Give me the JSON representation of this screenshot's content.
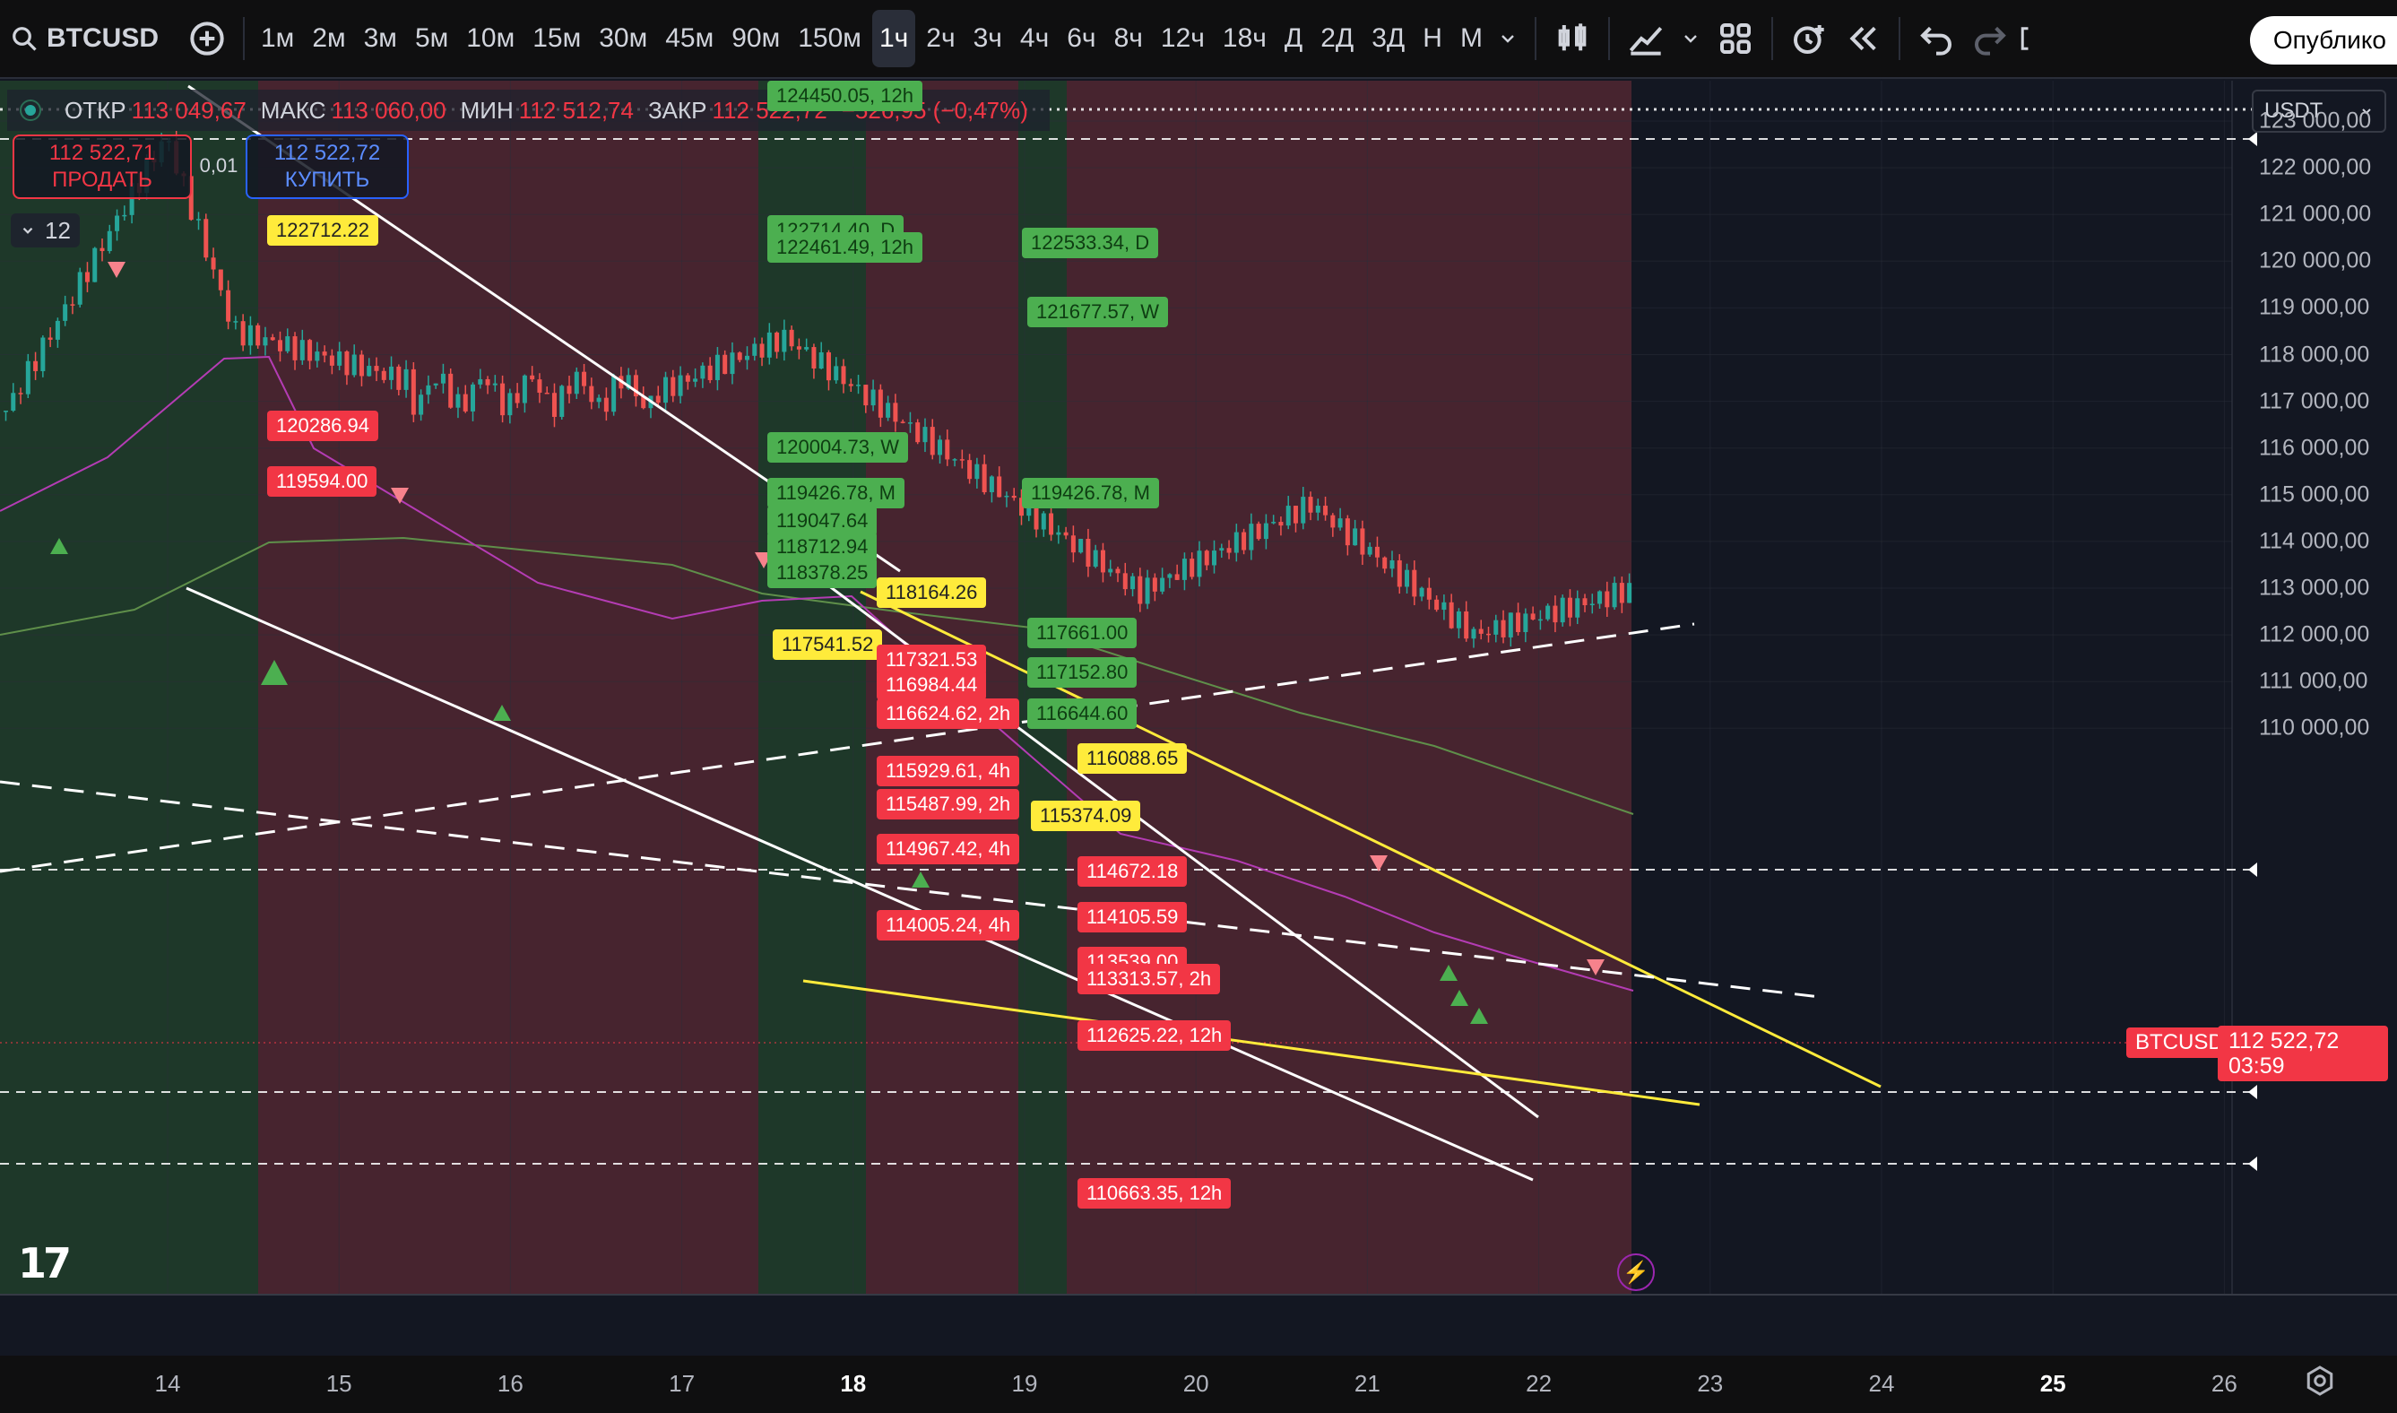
{
  "toolbar": {
    "symbol": "BTCUSD",
    "timeframes": [
      "1м",
      "2м",
      "3м",
      "5м",
      "10м",
      "15м",
      "30м",
      "45м",
      "90м",
      "150м",
      "1ч",
      "2ч",
      "3ч",
      "4ч",
      "6ч",
      "8ч",
      "12ч",
      "18ч",
      "Д",
      "2Д",
      "3Д",
      "Н",
      "М"
    ],
    "active_timeframe": "1ч",
    "publish_label": "Опублико"
  },
  "legend": {
    "open_label": "ОТКР",
    "open": "113 049,67",
    "high_label": "МАКС",
    "high": "113 060,00",
    "low_label": "МИН",
    "low": "112 512,74",
    "close_label": "ЗАКР",
    "close": "112 522,72",
    "change": "−526,95 (−0,47%)"
  },
  "trade": {
    "sell_price": "112 522,71",
    "sell_label": "ПРОДАТЬ",
    "buy_price": "112 522,72",
    "buy_label": "КУПИТЬ",
    "spread": "0,01"
  },
  "indicators_count": "12",
  "currency": "USDT",
  "last_price": {
    "symbol": "BTCUSDT",
    "price": "112 522,72",
    "countdown": "03:59",
    "value": 112522.72
  },
  "price_axis": [
    {
      "label": "123 000,00",
      "value": 123000
    },
    {
      "label": "122 000,00",
      "value": 122000
    },
    {
      "label": "121 000,00",
      "value": 121000
    },
    {
      "label": "120 000,00",
      "value": 120000
    },
    {
      "label": "119 000,00",
      "value": 119000
    },
    {
      "label": "118 000,00",
      "value": 118000
    },
    {
      "label": "117 000,00",
      "value": 117000
    },
    {
      "label": "116 000,00",
      "value": 116000
    },
    {
      "label": "115 000,00",
      "value": 115000
    },
    {
      "label": "114 000,00",
      "value": 114000
    },
    {
      "label": "113 000,00",
      "value": 113000
    },
    {
      "label": "112 000,00",
      "value": 112000
    },
    {
      "label": "111 000,00",
      "value": 111000
    },
    {
      "label": "110 000,00",
      "value": 110000
    }
  ],
  "date_axis": [
    {
      "label": "14",
      "bold": false
    },
    {
      "label": "15",
      "bold": false
    },
    {
      "label": "16",
      "bold": false
    },
    {
      "label": "17",
      "bold": false
    },
    {
      "label": "18",
      "bold": true
    },
    {
      "label": "19",
      "bold": false
    },
    {
      "label": "20",
      "bold": false
    },
    {
      "label": "21",
      "bold": false
    },
    {
      "label": "22",
      "bold": false
    },
    {
      "label": "23",
      "bold": false
    },
    {
      "label": "24",
      "bold": false
    },
    {
      "label": "25",
      "bold": true
    },
    {
      "label": "26",
      "bold": false
    }
  ],
  "level_labels": [
    {
      "text": "124450.05, 12h",
      "color": "g"
    },
    {
      "text": "122712.22",
      "color": "y"
    },
    {
      "text": "122714.40, D",
      "color": "g"
    },
    {
      "text": "122461.49, 12h",
      "color": "g"
    },
    {
      "text": "122533.34, D",
      "color": "g"
    },
    {
      "text": "121677.57, W",
      "color": "g"
    },
    {
      "text": "120286.94",
      "color": "r"
    },
    {
      "text": "120004.73, W",
      "color": "g"
    },
    {
      "text": "119594.00",
      "color": "r"
    },
    {
      "text": "119426.78, M",
      "color": "g"
    },
    {
      "text": "119426.78, M",
      "color": "g"
    },
    {
      "text": "119047.64",
      "color": "g"
    },
    {
      "text": "118712.94",
      "color": "g"
    },
    {
      "text": "118378.25",
      "color": "g"
    },
    {
      "text": "118164.26",
      "color": "y"
    },
    {
      "text": "117661.00",
      "color": "g"
    },
    {
      "text": "117541.52",
      "color": "y"
    },
    {
      "text": "117321.53",
      "color": "r"
    },
    {
      "text": "117152.80",
      "color": "g"
    },
    {
      "text": "116984.44",
      "color": "r"
    },
    {
      "text": "116624.62, 2h",
      "color": "r"
    },
    {
      "text": "116644.60",
      "color": "g"
    },
    {
      "text": "116088.65",
      "color": "y"
    },
    {
      "text": "115929.61, 4h",
      "color": "r"
    },
    {
      "text": "115487.99, 2h",
      "color": "r"
    },
    {
      "text": "115374.09",
      "color": "y"
    },
    {
      "text": "114967.42, 4h",
      "color": "r"
    },
    {
      "text": "114672.18",
      "color": "r"
    },
    {
      "text": "114105.59",
      "color": "r"
    },
    {
      "text": "114005.24, 4h",
      "color": "r"
    },
    {
      "text": "113539.00",
      "color": "r"
    },
    {
      "text": "113313.57, 2h",
      "color": "r"
    },
    {
      "text": "112625.22, 12h",
      "color": "r"
    },
    {
      "text": "110663.35, 12h",
      "color": "r"
    }
  ],
  "colors": {
    "background": "#131722",
    "bull_zone": "#1f3a2a",
    "bear_zone": "#4a2530",
    "up_candle": "#26a69a",
    "down_candle": "#ef5350",
    "trend_white": "#ffffff",
    "trend_yellow": "#ffeb3b",
    "ma_purple": "#b43cb4",
    "ma_green": "#5f8f4a"
  }
}
